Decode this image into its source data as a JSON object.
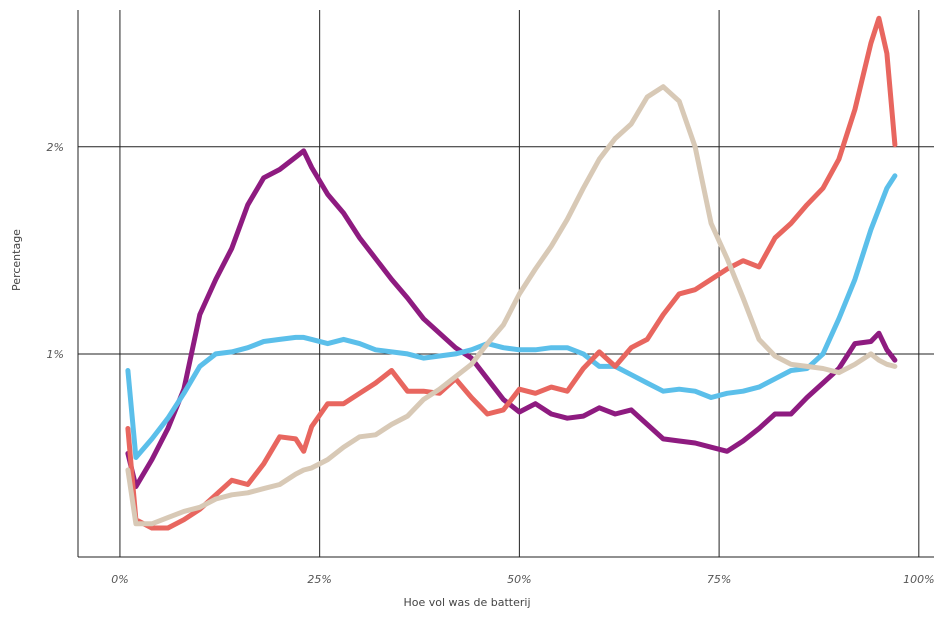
{
  "chart_data": {
    "type": "line",
    "xlabel": "Hoe vol was de batterij",
    "ylabel": "Percentage",
    "x": [
      1,
      2,
      4,
      6,
      8,
      10,
      12,
      14,
      16,
      18,
      20,
      22,
      23,
      24,
      26,
      28,
      30,
      32,
      34,
      36,
      38,
      40,
      42,
      44,
      46,
      48,
      50,
      52,
      54,
      56,
      58,
      60,
      62,
      64,
      66,
      68,
      70,
      72,
      74,
      76,
      78,
      80,
      82,
      84,
      86,
      88,
      90,
      92,
      94,
      95,
      96,
      97
    ],
    "series": [
      {
        "color": "#8e1b80",
        "values": [
          0.52,
          0.36,
          0.49,
          0.64,
          0.83,
          1.19,
          1.36,
          1.51,
          1.72,
          1.85,
          1.89,
          1.95,
          1.98,
          1.9,
          1.77,
          1.68,
          1.56,
          1.46,
          1.36,
          1.27,
          1.17,
          1.1,
          1.03,
          0.98,
          0.88,
          0.78,
          0.72,
          0.76,
          0.71,
          0.69,
          0.7,
          0.74,
          0.71,
          0.73,
          0.66,
          0.59,
          0.58,
          0.57,
          0.55,
          0.53,
          0.58,
          0.64,
          0.71,
          0.71,
          0.79,
          0.86,
          0.93,
          1.05,
          1.06,
          1.1,
          1.02,
          0.97
        ]
      },
      {
        "color": "#5bbfea",
        "values": [
          0.92,
          0.5,
          0.59,
          0.69,
          0.81,
          0.94,
          1.0,
          1.01,
          1.03,
          1.06,
          1.07,
          1.08,
          1.08,
          1.07,
          1.05,
          1.07,
          1.05,
          1.02,
          1.01,
          1.0,
          0.98,
          0.99,
          1.0,
          1.02,
          1.05,
          1.03,
          1.02,
          1.02,
          1.03,
          1.03,
          1.0,
          0.94,
          0.94,
          0.9,
          0.86,
          0.82,
          0.83,
          0.82,
          0.79,
          0.81,
          0.82,
          0.84,
          0.88,
          0.92,
          0.93,
          1.0,
          1.17,
          1.36,
          1.6,
          1.7,
          1.8,
          1.86
        ]
      },
      {
        "color": "#e8665f",
        "values": [
          0.64,
          0.2,
          0.16,
          0.16,
          0.2,
          0.25,
          0.32,
          0.39,
          0.37,
          0.47,
          0.6,
          0.59,
          0.53,
          0.65,
          0.76,
          0.76,
          0.81,
          0.86,
          0.92,
          0.82,
          0.82,
          0.81,
          0.88,
          0.79,
          0.71,
          0.73,
          0.83,
          0.81,
          0.84,
          0.82,
          0.93,
          1.01,
          0.94,
          1.03,
          1.07,
          1.19,
          1.29,
          1.31,
          1.36,
          1.41,
          1.45,
          1.42,
          1.56,
          1.63,
          1.72,
          1.8,
          1.94,
          2.18,
          2.5,
          2.62,
          2.45,
          2.01
        ]
      },
      {
        "color": "#d8c9b6",
        "values": [
          0.44,
          0.18,
          0.18,
          0.21,
          0.24,
          0.26,
          0.3,
          0.32,
          0.33,
          0.35,
          0.37,
          0.42,
          0.44,
          0.45,
          0.49,
          0.55,
          0.6,
          0.61,
          0.66,
          0.7,
          0.78,
          0.83,
          0.89,
          0.95,
          1.05,
          1.14,
          1.29,
          1.41,
          1.52,
          1.65,
          1.8,
          1.94,
          2.04,
          2.11,
          2.24,
          2.29,
          2.22,
          2.0,
          1.63,
          1.46,
          1.27,
          1.07,
          0.99,
          0.95,
          0.94,
          0.93,
          0.91,
          0.95,
          1.0,
          0.97,
          0.95,
          0.94
        ]
      }
    ],
    "xlim": [
      -5.25,
      101.9
    ],
    "xticks": [
      {
        "value": 0,
        "label": "0%"
      },
      {
        "value": 25,
        "label": "25%"
      },
      {
        "value": 50,
        "label": "50%"
      },
      {
        "value": 75,
        "label": "75%"
      },
      {
        "value": 100,
        "label": "100%"
      }
    ],
    "ylim": [
      0.02,
      2.66
    ],
    "yticks": [
      {
        "value": 1,
        "label": "1%"
      },
      {
        "value": 2,
        "label": "2%"
      }
    ],
    "grid": true
  }
}
